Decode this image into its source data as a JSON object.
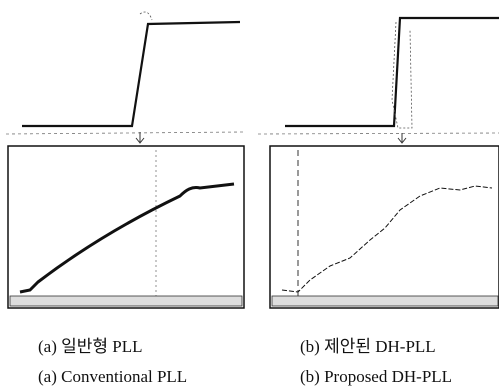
{
  "figure": {
    "panels": [
      {
        "caption_ko": "(a) 일반형 PLL",
        "caption_en": "(a) Conventional PLL"
      },
      {
        "caption_ko": "(b) 제안된 DH-PLL",
        "caption_en": "(b) Proposed DH-PLL"
      }
    ]
  }
}
